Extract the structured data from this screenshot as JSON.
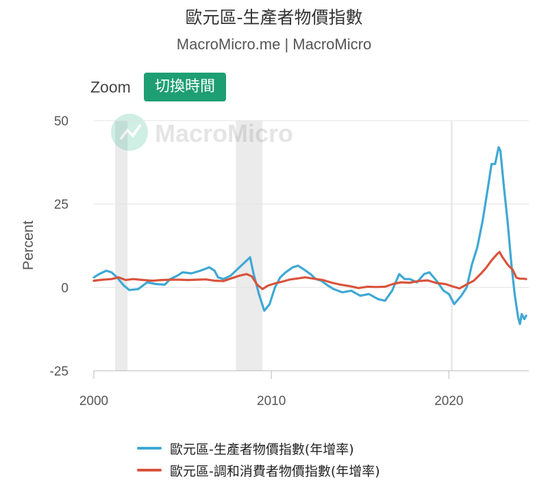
{
  "header": {
    "title": "歐元區-生產者物價指數",
    "subtitle": "MacroMicro.me | MacroMicro"
  },
  "toolbar": {
    "zoom_label": "Zoom",
    "switch_time_label": "切換時間"
  },
  "watermark": {
    "text": "MacroMicro"
  },
  "colors": {
    "ppi": "#3ea8d4",
    "hicp": "#d9533c",
    "recession": "#ebebeb",
    "button": "#1e9e73"
  },
  "chart_data": {
    "type": "line",
    "title": "歐元區-生產者物價指數",
    "subtitle": "MacroMicro.me | MacroMicro",
    "xlabel": "",
    "ylabel": "Percent",
    "xlim": [
      2000,
      2024.5
    ],
    "ylim": [
      -25,
      50
    ],
    "yticks": [
      -25,
      0,
      25,
      50
    ],
    "ytick_labels": [
      "-25",
      "0",
      "25",
      "50"
    ],
    "xticks": [
      2000,
      2010,
      2020
    ],
    "xtick_labels": [
      "2000",
      "2010",
      "2020"
    ],
    "grid": "horizontal",
    "legend_position": "bottom",
    "recession_bands": [
      [
        2001.2,
        2001.9
      ],
      [
        2008.0,
        2009.5
      ],
      [
        2020.1,
        2020.2
      ]
    ],
    "series": [
      {
        "name": "歐元區-生產者物價指數(年增率)",
        "color": "#3ea8d4",
        "points": [
          [
            2000.0,
            3.0
          ],
          [
            2000.3,
            4.0
          ],
          [
            2000.7,
            5.0
          ],
          [
            2001.0,
            4.5
          ],
          [
            2001.3,
            3.0
          ],
          [
            2001.7,
            0.5
          ],
          [
            2002.0,
            -0.8
          ],
          [
            2002.5,
            -0.5
          ],
          [
            2003.0,
            1.5
          ],
          [
            2003.5,
            1.0
          ],
          [
            2004.0,
            0.8
          ],
          [
            2004.3,
            2.5
          ],
          [
            2004.7,
            3.5
          ],
          [
            2005.0,
            4.5
          ],
          [
            2005.5,
            4.2
          ],
          [
            2006.0,
            5.0
          ],
          [
            2006.5,
            6.0
          ],
          [
            2006.8,
            5.0
          ],
          [
            2007.0,
            3.0
          ],
          [
            2007.3,
            2.5
          ],
          [
            2007.7,
            3.5
          ],
          [
            2008.0,
            5.0
          ],
          [
            2008.5,
            7.5
          ],
          [
            2008.8,
            9.0
          ],
          [
            2009.0,
            4.0
          ],
          [
            2009.3,
            -2.0
          ],
          [
            2009.6,
            -7.0
          ],
          [
            2009.9,
            -5.0
          ],
          [
            2010.2,
            0.0
          ],
          [
            2010.5,
            3.0
          ],
          [
            2010.8,
            4.5
          ],
          [
            2011.2,
            6.0
          ],
          [
            2011.5,
            6.5
          ],
          [
            2011.8,
            5.5
          ],
          [
            2012.2,
            4.0
          ],
          [
            2012.5,
            2.5
          ],
          [
            2012.8,
            2.0
          ],
          [
            2013.2,
            0.5
          ],
          [
            2013.5,
            -0.5
          ],
          [
            2014.0,
            -1.5
          ],
          [
            2014.5,
            -1.0
          ],
          [
            2015.0,
            -2.5
          ],
          [
            2015.5,
            -2.0
          ],
          [
            2016.0,
            -3.5
          ],
          [
            2016.4,
            -4.0
          ],
          [
            2016.8,
            -1.0
          ],
          [
            2017.2,
            4.0
          ],
          [
            2017.5,
            2.5
          ],
          [
            2017.8,
            2.5
          ],
          [
            2018.2,
            1.5
          ],
          [
            2018.6,
            4.0
          ],
          [
            2018.9,
            4.5
          ],
          [
            2019.3,
            2.0
          ],
          [
            2019.7,
            -1.0
          ],
          [
            2020.0,
            -2.0
          ],
          [
            2020.3,
            -5.0
          ],
          [
            2020.7,
            -2.5
          ],
          [
            2021.0,
            0.0
          ],
          [
            2021.3,
            7.0
          ],
          [
            2021.6,
            12.0
          ],
          [
            2021.9,
            20.0
          ],
          [
            2022.2,
            30.0
          ],
          [
            2022.4,
            37.0
          ],
          [
            2022.6,
            37.0
          ],
          [
            2022.8,
            42.0
          ],
          [
            2022.9,
            41.0
          ],
          [
            2023.1,
            30.0
          ],
          [
            2023.3,
            20.0
          ],
          [
            2023.5,
            8.0
          ],
          [
            2023.7,
            -2.0
          ],
          [
            2023.9,
            -9.0
          ],
          [
            2024.0,
            -11.0
          ],
          [
            2024.1,
            -8.0
          ],
          [
            2024.25,
            -9.5
          ],
          [
            2024.35,
            -8.5
          ]
        ]
      },
      {
        "name": "歐元區-調和消費者物價指數(年增率)",
        "color": "#d9533c",
        "points": [
          [
            2000.0,
            2.0
          ],
          [
            2000.5,
            2.3
          ],
          [
            2001.0,
            2.5
          ],
          [
            2001.4,
            3.0
          ],
          [
            2001.8,
            2.2
          ],
          [
            2002.2,
            2.5
          ],
          [
            2002.8,
            2.2
          ],
          [
            2003.3,
            2.0
          ],
          [
            2003.8,
            2.2
          ],
          [
            2004.3,
            2.3
          ],
          [
            2004.8,
            2.3
          ],
          [
            2005.3,
            2.2
          ],
          [
            2005.8,
            2.3
          ],
          [
            2006.3,
            2.4
          ],
          [
            2006.8,
            2.0
          ],
          [
            2007.3,
            1.9
          ],
          [
            2007.8,
            2.8
          ],
          [
            2008.2,
            3.5
          ],
          [
            2008.6,
            4.0
          ],
          [
            2008.9,
            3.3
          ],
          [
            2009.2,
            0.8
          ],
          [
            2009.5,
            -0.5
          ],
          [
            2009.8,
            0.5
          ],
          [
            2010.2,
            1.2
          ],
          [
            2010.6,
            1.7
          ],
          [
            2011.0,
            2.3
          ],
          [
            2011.5,
            2.7
          ],
          [
            2011.9,
            3.0
          ],
          [
            2012.4,
            2.6
          ],
          [
            2012.9,
            2.2
          ],
          [
            2013.4,
            1.4
          ],
          [
            2013.9,
            0.8
          ],
          [
            2014.4,
            0.4
          ],
          [
            2014.9,
            -0.2
          ],
          [
            2015.4,
            0.2
          ],
          [
            2015.9,
            0.1
          ],
          [
            2016.4,
            0.2
          ],
          [
            2016.9,
            1.1
          ],
          [
            2017.3,
            1.5
          ],
          [
            2017.8,
            1.4
          ],
          [
            2018.3,
            1.9
          ],
          [
            2018.8,
            2.1
          ],
          [
            2019.3,
            1.3
          ],
          [
            2019.8,
            1.0
          ],
          [
            2020.2,
            0.3
          ],
          [
            2020.6,
            -0.3
          ],
          [
            2021.0,
            0.9
          ],
          [
            2021.4,
            2.0
          ],
          [
            2021.8,
            4.1
          ],
          [
            2022.1,
            5.9
          ],
          [
            2022.4,
            8.1
          ],
          [
            2022.7,
            9.9
          ],
          [
            2022.85,
            10.6
          ],
          [
            2023.0,
            9.2
          ],
          [
            2023.3,
            6.9
          ],
          [
            2023.6,
            5.2
          ],
          [
            2023.8,
            2.9
          ],
          [
            2024.0,
            2.6
          ],
          [
            2024.2,
            2.6
          ],
          [
            2024.35,
            2.5
          ]
        ]
      }
    ]
  }
}
